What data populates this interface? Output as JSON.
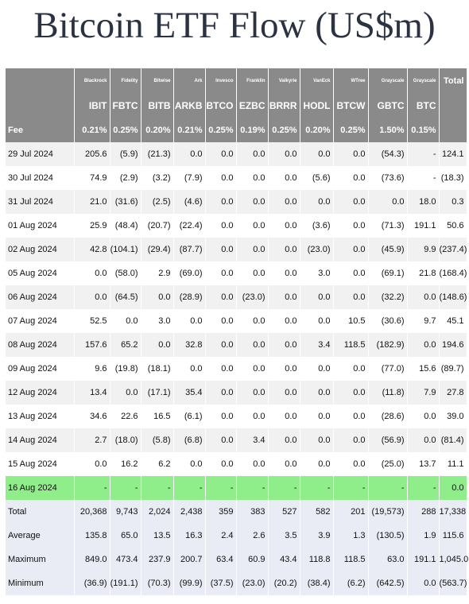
{
  "title": "Bitcoin ETF Flow (US$m)",
  "colors": {
    "header_bg": "#8a8a8a",
    "highlight_row": "#90ee8a",
    "negative_text": "#e0262a",
    "summary_bg": "#e9ecf5"
  },
  "issuers": [
    "Blackrock",
    "Fidelity",
    "Bitwise",
    "Ark",
    "Invesco",
    "Franklin",
    "Valkyrie",
    "VanEck",
    "WTree",
    "Grayscale",
    "Grayscale",
    "Total"
  ],
  "tickers": [
    "IBIT",
    "FBTC",
    "BITB",
    "ARKB",
    "BTCO",
    "EZBC",
    "BRRR",
    "HODL",
    "BTCW",
    "GBTC",
    "BTC",
    ""
  ],
  "fee_label": "Fee",
  "fees": [
    "0.21%",
    "0.25%",
    "0.20%",
    "0.21%",
    "0.25%",
    "0.19%",
    "0.25%",
    "0.20%",
    "0.25%",
    "1.50%",
    "0.15%",
    ""
  ],
  "rows": [
    {
      "date": "29 Jul 2024",
      "values": [
        "205.6",
        "(5.9)",
        "(21.3)",
        "0.0",
        "0.0",
        "0.0",
        "0.0",
        "0.0",
        "0.0",
        "(54.3)",
        "-",
        "124.1"
      ]
    },
    {
      "date": "30 Jul 2024",
      "values": [
        "74.9",
        "(2.9)",
        "(3.2)",
        "(7.9)",
        "0.0",
        "0.0",
        "0.0",
        "(5.6)",
        "0.0",
        "(73.6)",
        "-",
        "(18.3)"
      ]
    },
    {
      "date": "31 Jul 2024",
      "values": [
        "21.0",
        "(31.6)",
        "(2.5)",
        "(4.6)",
        "0.0",
        "0.0",
        "0.0",
        "0.0",
        "0.0",
        "0.0",
        "18.0",
        "0.3"
      ]
    },
    {
      "date": "01 Aug 2024",
      "values": [
        "25.9",
        "(48.4)",
        "(20.7)",
        "(22.4)",
        "0.0",
        "0.0",
        "0.0",
        "(3.6)",
        "0.0",
        "(71.3)",
        "191.1",
        "50.6"
      ]
    },
    {
      "date": "02 Aug 2024",
      "values": [
        "42.8",
        "(104.1)",
        "(29.4)",
        "(87.7)",
        "0.0",
        "0.0",
        "0.0",
        "(23.0)",
        "0.0",
        "(45.9)",
        "9.9",
        "(237.4)"
      ]
    },
    {
      "date": "05 Aug 2024",
      "values": [
        "0.0",
        "(58.0)",
        "2.9",
        "(69.0)",
        "0.0",
        "0.0",
        "0.0",
        "3.0",
        "0.0",
        "(69.1)",
        "21.8",
        "(168.4)"
      ]
    },
    {
      "date": "06 Aug 2024",
      "values": [
        "0.0",
        "(64.5)",
        "0.0",
        "(28.9)",
        "0.0",
        "(23.0)",
        "0.0",
        "0.0",
        "0.0",
        "(32.2)",
        "0.0",
        "(148.6)"
      ]
    },
    {
      "date": "07 Aug 2024",
      "values": [
        "52.5",
        "0.0",
        "3.0",
        "0.0",
        "0.0",
        "0.0",
        "0.0",
        "0.0",
        "10.5",
        "(30.6)",
        "9.7",
        "45.1"
      ]
    },
    {
      "date": "08 Aug 2024",
      "values": [
        "157.6",
        "65.2",
        "0.0",
        "32.8",
        "0.0",
        "0.0",
        "0.0",
        "3.4",
        "118.5",
        "(182.9)",
        "0.0",
        "194.6"
      ]
    },
    {
      "date": "09 Aug 2024",
      "values": [
        "9.6",
        "(19.8)",
        "(18.1)",
        "0.0",
        "0.0",
        "0.0",
        "0.0",
        "0.0",
        "0.0",
        "(77.0)",
        "15.6",
        "(89.7)"
      ]
    },
    {
      "date": "12 Aug 2024",
      "values": [
        "13.4",
        "0.0",
        "(17.1)",
        "35.4",
        "0.0",
        "0.0",
        "0.0",
        "0.0",
        "0.0",
        "(11.8)",
        "7.9",
        "27.8"
      ]
    },
    {
      "date": "13 Aug 2024",
      "values": [
        "34.6",
        "22.6",
        "16.5",
        "(6.1)",
        "0.0",
        "0.0",
        "0.0",
        "0.0",
        "0.0",
        "(28.6)",
        "0.0",
        "39.0"
      ]
    },
    {
      "date": "14 Aug 2024",
      "values": [
        "2.7",
        "(18.0)",
        "(5.8)",
        "(6.8)",
        "0.0",
        "3.4",
        "0.0",
        "0.0",
        "0.0",
        "(56.9)",
        "0.0",
        "(81.4)"
      ]
    },
    {
      "date": "15 Aug 2024",
      "values": [
        "0.0",
        "16.2",
        "6.2",
        "0.0",
        "0.0",
        "0.0",
        "0.0",
        "0.0",
        "0.0",
        "(25.0)",
        "13.7",
        "11.1"
      ]
    },
    {
      "date": "16 Aug 2024",
      "values": [
        "-",
        "-",
        "-",
        "-",
        "-",
        "-",
        "-",
        "-",
        "-",
        "-",
        "-",
        "0.0"
      ],
      "highlight": true
    }
  ],
  "summary": [
    {
      "label": "Total",
      "values": [
        "20,368",
        "9,743",
        "2,024",
        "2,438",
        "359",
        "383",
        "527",
        "582",
        "201",
        "(19,573)",
        "288",
        "17,338"
      ]
    },
    {
      "label": "Average",
      "values": [
        "135.8",
        "65.0",
        "13.5",
        "16.3",
        "2.4",
        "2.6",
        "3.5",
        "3.9",
        "1.3",
        "(130.5)",
        "1.9",
        "115.6"
      ]
    },
    {
      "label": "Maximum",
      "values": [
        "849.0",
        "473.4",
        "237.9",
        "200.7",
        "63.4",
        "60.9",
        "43.4",
        "118.8",
        "118.5",
        "63.0",
        "191.1",
        "1,045.0"
      ]
    },
    {
      "label": "Minimum",
      "values": [
        "(36.9)",
        "(191.1)",
        "(70.3)",
        "(99.9)",
        "(37.5)",
        "(23.0)",
        "(20.2)",
        "(38.4)",
        "(6.2)",
        "(642.5)",
        "0.0",
        "(563.7)"
      ]
    }
  ]
}
